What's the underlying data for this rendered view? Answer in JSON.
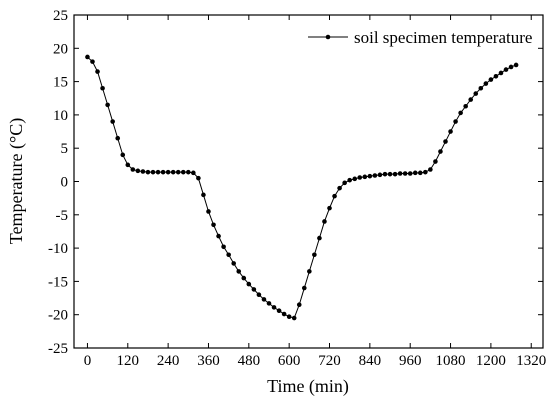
{
  "chart_data": {
    "type": "line",
    "xlabel": "Time (min)",
    "ylabel": "Temperature (°C)",
    "x": [
      0,
      15,
      30,
      45,
      60,
      75,
      90,
      105,
      120,
      135,
      150,
      165,
      180,
      195,
      210,
      225,
      240,
      255,
      270,
      285,
      300,
      315,
      330,
      345,
      360,
      375,
      390,
      405,
      420,
      435,
      450,
      465,
      480,
      495,
      510,
      525,
      540,
      555,
      570,
      585,
      600,
      615,
      630,
      645,
      660,
      675,
      690,
      705,
      720,
      735,
      750,
      765,
      780,
      795,
      810,
      825,
      840,
      855,
      870,
      885,
      900,
      915,
      930,
      945,
      960,
      975,
      990,
      1005,
      1020,
      1035,
      1050,
      1065,
      1080,
      1095,
      1110,
      1125,
      1140,
      1155,
      1170,
      1185,
      1200,
      1215,
      1230,
      1245,
      1260,
      1275
    ],
    "series": [
      {
        "name": "soil specimen temperature",
        "color": "#000000",
        "values": [
          18.7,
          18,
          16.5,
          14,
          11.5,
          9,
          6.5,
          4,
          2.5,
          1.8,
          1.6,
          1.5,
          1.4,
          1.4,
          1.4,
          1.4,
          1.4,
          1.4,
          1.4,
          1.4,
          1.4,
          1.3,
          0.5,
          -2,
          -4.5,
          -6.5,
          -8.2,
          -9.8,
          -11,
          -12.3,
          -13.5,
          -14.5,
          -15.4,
          -16.2,
          -17,
          -17.7,
          -18.3,
          -18.9,
          -19.4,
          -19.9,
          -20.3,
          -20.5,
          -18.5,
          -16,
          -13.5,
          -11,
          -8.5,
          -6,
          -4,
          -2.2,
          -1,
          -0.2,
          0.2,
          0.4,
          0.6,
          0.7,
          0.8,
          0.9,
          1,
          1.1,
          1.1,
          1.1,
          1.2,
          1.2,
          1.2,
          1.3,
          1.3,
          1.4,
          1.8,
          3,
          4.5,
          6,
          7.5,
          9,
          10.3,
          11.3,
          12.3,
          13.2,
          14,
          14.7,
          15.3,
          15.8,
          16.3,
          16.8,
          17.2,
          17.5
        ]
      }
    ],
    "xlim": [
      -40,
      1355
    ],
    "xticks": [
      0,
      120,
      240,
      360,
      480,
      600,
      720,
      840,
      960,
      1080,
      1200,
      1320
    ],
    "ylim": [
      -25,
      25
    ],
    "yticks": [
      -25,
      -20,
      -15,
      -10,
      -5,
      0,
      5,
      10,
      15,
      20,
      25
    ],
    "legend": "upper right"
  }
}
